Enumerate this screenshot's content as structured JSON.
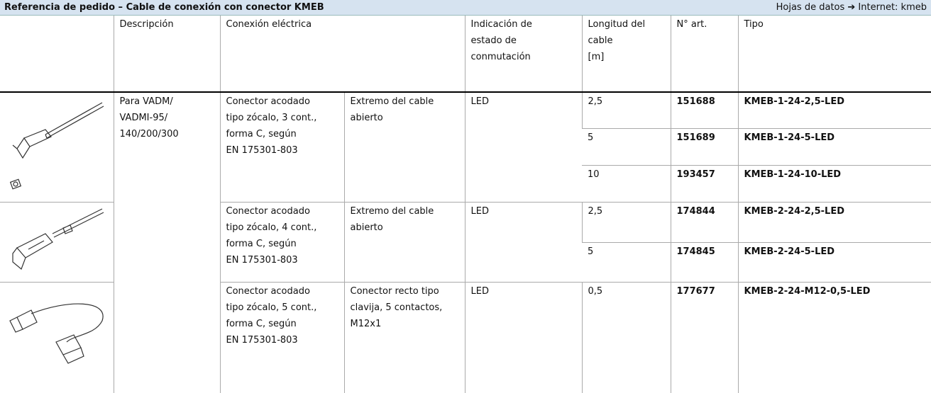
{
  "header": {
    "title": "Referencia de pedido – Cable de conexión con conector KMEB",
    "link": "Hojas de datos ➔ Internet: kmeb"
  },
  "table": {
    "columns": [
      [
        "Descripción"
      ],
      [
        "Conexión eléctrica"
      ],
      [
        "Indicación de",
        "estado de",
        "conmutación"
      ],
      [
        "Longitud del",
        "cable",
        "[m]"
      ],
      [
        "N° art."
      ],
      [
        "Tipo"
      ]
    ],
    "description": [
      "Para VADM/",
      "VADMI-95/",
      "140/200/300"
    ],
    "groups": [
      {
        "connector": [
          "Conector acodado",
          "tipo zócalo, 3 cont.,",
          "forma C, según",
          "EN 175301-803"
        ],
        "end": [
          "Extremo del cable",
          "abierto"
        ],
        "indication": "LED",
        "items": [
          {
            "length": "2,5",
            "article": "151688",
            "type": "KMEB-1-24-2,5-LED"
          },
          {
            "length": "5",
            "article": "151689",
            "type": "KMEB-1-24-5-LED"
          },
          {
            "length": "10",
            "article": "193457",
            "type": "KMEB-1-24-10-LED"
          }
        ]
      },
      {
        "connector": [
          "Conector acodado",
          "tipo zócalo, 4 cont.,",
          "forma C, según",
          "EN 175301-803"
        ],
        "end": [
          "Extremo del cable",
          "abierto"
        ],
        "indication": "LED",
        "items": [
          {
            "length": "2,5",
            "article": "174844",
            "type": "KMEB-2-24-2,5-LED"
          },
          {
            "length": "5",
            "article": "174845",
            "type": "KMEB-2-24-5-LED"
          }
        ]
      },
      {
        "connector": [
          "Conector acodado",
          "tipo zócalo, 5 cont.,",
          "forma C, según",
          "EN 175301-803"
        ],
        "end": [
          "Conector recto tipo",
          "clavija, 5 contactos,",
          "M12x1"
        ],
        "indication": "LED",
        "items": [
          {
            "length": "0,5",
            "article": "177677",
            "type": "KMEB-2-24-M12-0,5-LED"
          }
        ]
      }
    ]
  }
}
